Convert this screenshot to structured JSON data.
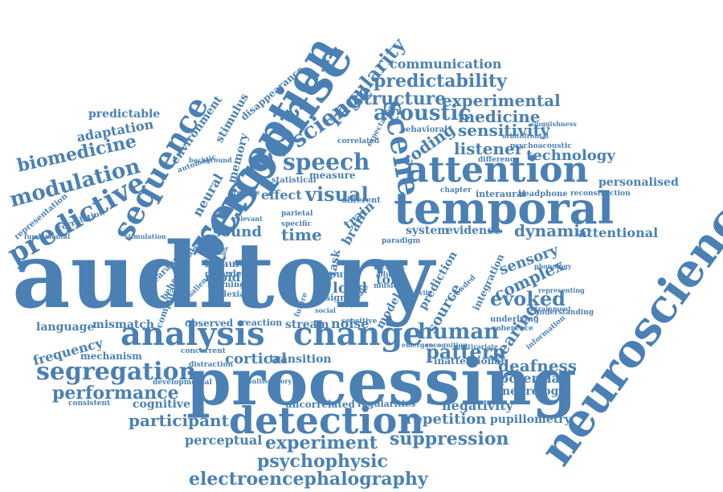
{
  "colors": {
    "word": "#4a80b4",
    "background": "#ffffff"
  },
  "words": [
    "auditory",
    "processing",
    "neuroscience",
    "response",
    "perception",
    "temporal",
    "attention",
    "detection",
    "analysis",
    "change",
    "sequence",
    "scene",
    "science",
    "regularity",
    "predictive",
    "segregation",
    "experiment",
    "electroencephalography",
    "psychophysic",
    "performance",
    "participant",
    "speech",
    "acoustic",
    "structure",
    "predictability",
    "communication",
    "experimental",
    "medicine",
    "sensitivity",
    "listener",
    "technology",
    "personalised",
    "dynamic",
    "attentional",
    "evoked",
    "complex",
    "sensory",
    "human",
    "pattern",
    "hearing",
    "deafness",
    "potential",
    "neurology",
    "negativity",
    "repetition",
    "suppression",
    "pupillometry",
    "cortical",
    "transition",
    "stream",
    "noise",
    "time",
    "visual",
    "effect",
    "sound",
    "modulation",
    "biomedicine",
    "adaptation",
    "predictable",
    "frequency",
    "language",
    "mismatch",
    "mechanism",
    "cognitive",
    "perceptual",
    "coding",
    "neural",
    "memory",
    "environment",
    "stimulus",
    "disappearance",
    "load",
    "tone",
    "source",
    "model",
    "prediction",
    "integration",
    "system",
    "evidence",
    "interaural",
    "chapter",
    "observed",
    "reaction",
    "concurrent",
    "uncorrelated",
    "regularities",
    "inattentional",
    "underlying",
    "rapid",
    "binaural",
    "disorder",
    "learning",
    "dyslexia",
    "behavioural",
    "computational",
    "appearance",
    "correlation",
    "representation",
    "fundamental",
    "automatic",
    "measure",
    "statistical",
    "different",
    "parietal",
    "specific",
    "relevant",
    "result",
    "adult",
    "pupil",
    "signal",
    "music",
    "task",
    "brain",
    "train",
    "future",
    "salience",
    "distractor",
    "stimulation",
    "developmental",
    "multisensory",
    "multivariate",
    "recognition",
    "emergence",
    "coherence",
    "information",
    "understanding",
    "representing",
    "phonology",
    "entrainment",
    "distraction",
    "paradigm",
    "sensitive",
    "behavioral",
    "correlated",
    "expectation",
    "consistent",
    "headphone",
    "reconstruction",
    "difference",
    "psychoacoustic",
    "orbitofrontal",
    "sluggishness",
    "background",
    "previous",
    "finding",
    "crowded",
    "female",
    "social",
    "activity"
  ]
}
